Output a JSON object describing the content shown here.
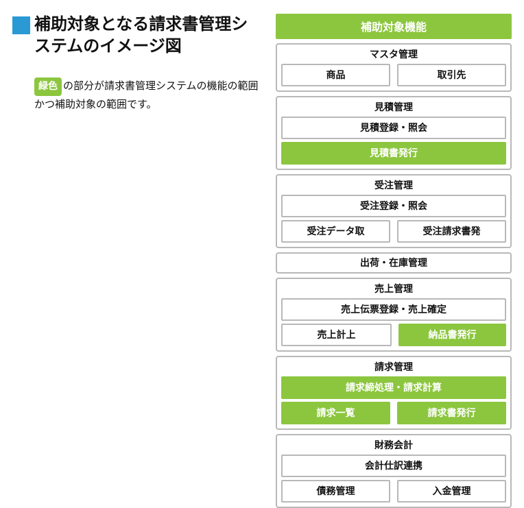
{
  "colors": {
    "blue": "#2a99d4",
    "green": "#8cc63f",
    "border_gray": "#b8b8b8",
    "text": "#111111",
    "white": "#ffffff"
  },
  "left": {
    "title": "補助対象となる請求書管理システムのイメージ図",
    "badge": "緑色",
    "caption_rest": "の部分が請求書管理システムの機能の範囲かつ補助対象の範囲です。"
  },
  "right": {
    "header": "補助対象機能",
    "groups": [
      {
        "title": "マスタ管理",
        "rows": [
          [
            {
              "label": "商品",
              "filled": false
            },
            {
              "label": "取引先",
              "filled": false
            }
          ]
        ]
      },
      {
        "title": "見積管理",
        "rows": [
          [
            {
              "label": "見積登録・照会",
              "filled": false
            }
          ],
          [
            {
              "label": "見積書発行",
              "filled": true
            }
          ]
        ]
      },
      {
        "title": "受注管理",
        "rows": [
          [
            {
              "label": "受注登録・照会",
              "filled": false
            }
          ],
          [
            {
              "label": "受注データ取",
              "filled": false
            },
            {
              "label": "受注請求書発",
              "filled": false
            }
          ]
        ]
      },
      {
        "type": "thinbar",
        "title": "出荷・在庫管理"
      },
      {
        "title": "売上管理",
        "rows": [
          [
            {
              "label": "売上伝票登録・売上確定",
              "filled": false
            }
          ],
          [
            {
              "label": "売上計上",
              "filled": false
            },
            {
              "label": "納品書発行",
              "filled": true
            }
          ]
        ]
      },
      {
        "title": "請求管理",
        "rows": [
          [
            {
              "label": "請求締処理・請求計算",
              "filled": true
            }
          ],
          [
            {
              "label": "請求一覧",
              "filled": true
            },
            {
              "label": "請求書発行",
              "filled": true
            }
          ]
        ]
      },
      {
        "title": "財務会計",
        "rows": [
          [
            {
              "label": "会計仕訳連携",
              "filled": false
            }
          ],
          [
            {
              "label": "債務管理",
              "filled": false
            },
            {
              "label": "入金管理",
              "filled": false
            }
          ]
        ]
      }
    ]
  }
}
